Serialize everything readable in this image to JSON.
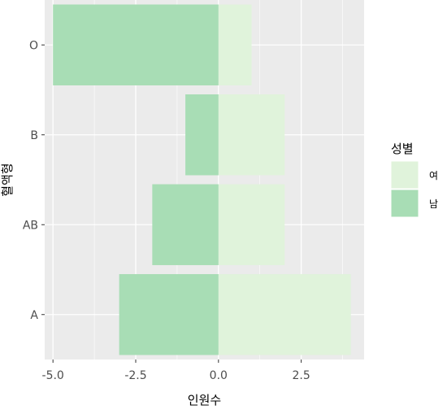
{
  "chart_data": {
    "type": "bar",
    "orientation": "horizontal",
    "categories": [
      "A",
      "AB",
      "B",
      "O"
    ],
    "series": [
      {
        "name": "여",
        "values": [
          4,
          2,
          2,
          1
        ],
        "color": "#e0f3db"
      },
      {
        "name": "남",
        "values": [
          -3,
          -2,
          -1,
          -5
        ],
        "color": "#a8ddb5"
      }
    ],
    "xlabel": "인원수",
    "ylabel": "혈액형",
    "xlim": [
      -5.25,
      4.4
    ],
    "xticks": [
      -5.0,
      -2.5,
      0.0,
      2.5
    ],
    "xtick_labels": [
      "-5.0",
      "-2.5",
      "0.0",
      "2.5"
    ],
    "legend": {
      "title": "성별",
      "position": "right"
    },
    "grid": true,
    "panel_color": "#ebebeb"
  }
}
